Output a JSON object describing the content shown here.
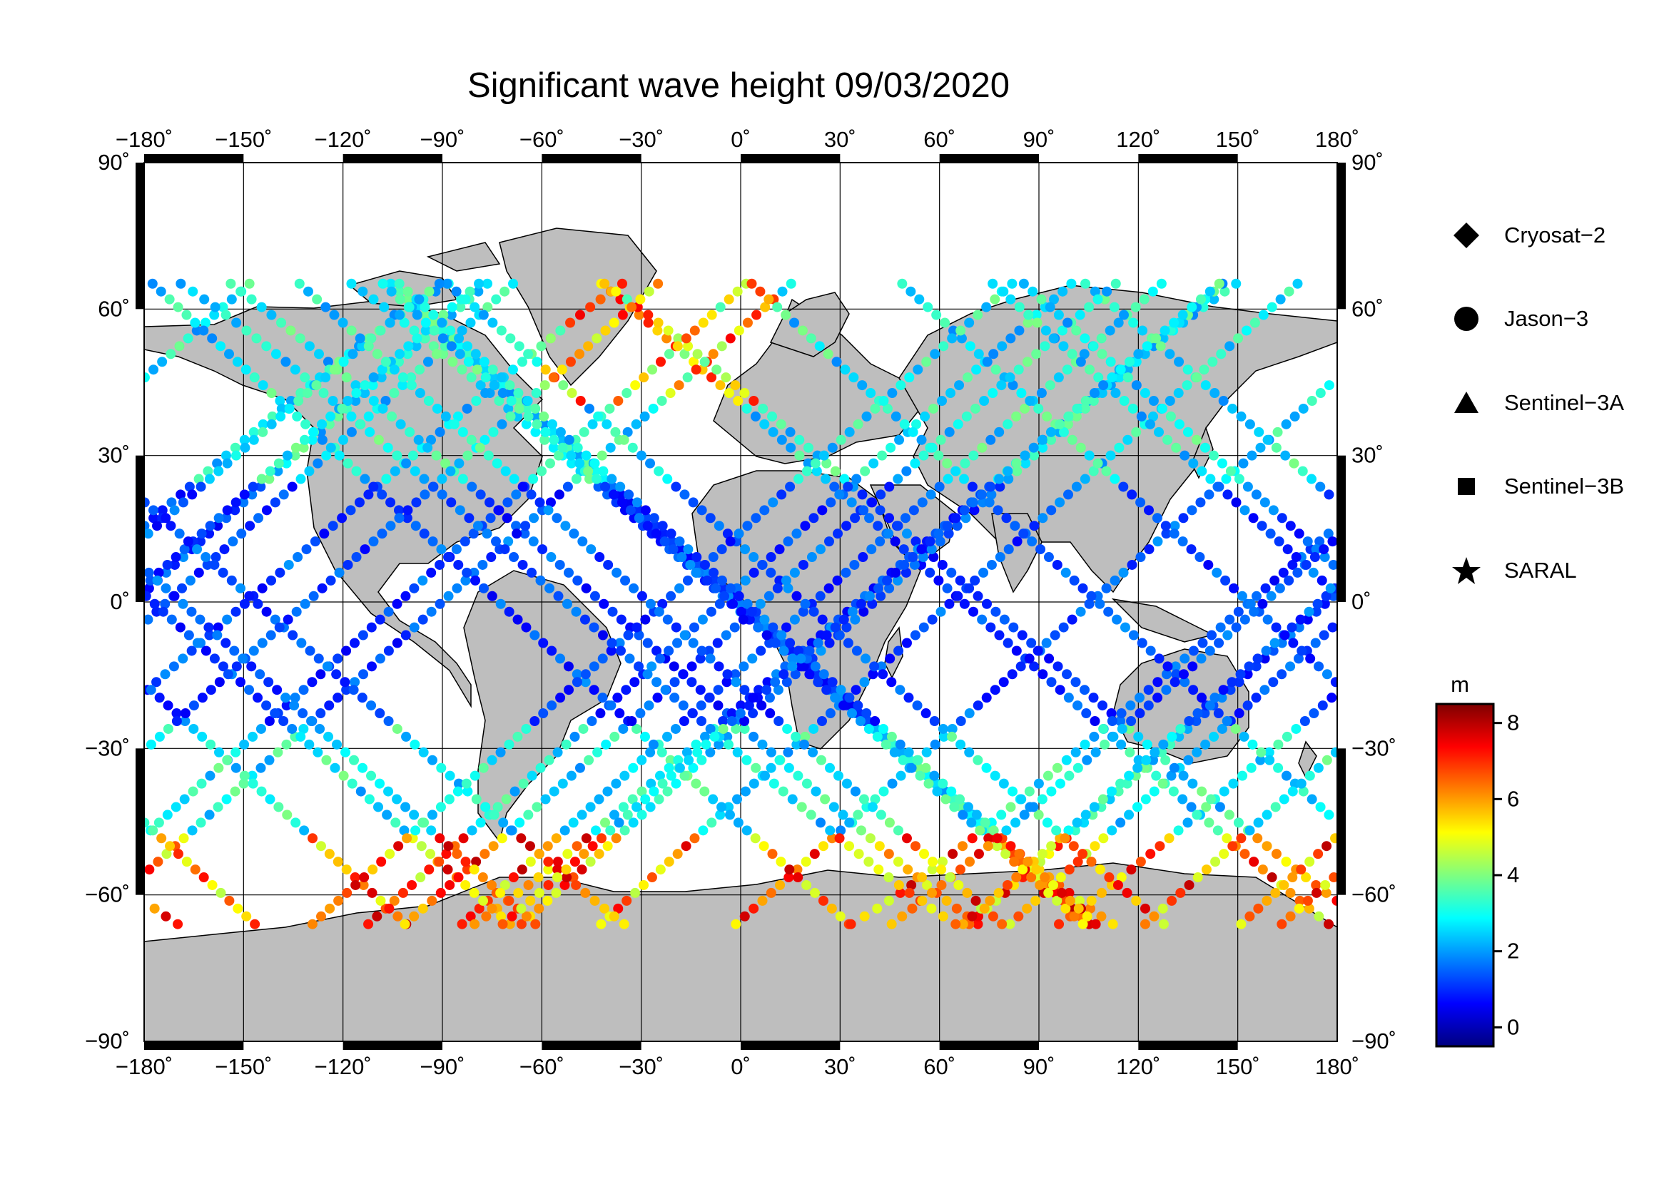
{
  "title": "Significant wave height 09/03/2020",
  "map": {
    "lon_ticks": [
      "−180˚",
      "−150˚",
      "−120˚",
      "−90˚",
      "−60˚",
      "−30˚",
      "0˚",
      "30˚",
      "60˚",
      "90˚",
      "120˚",
      "150˚",
      "180˚"
    ],
    "lat_ticks_left": [
      "90˚",
      "60˚",
      "30˚",
      "0˚",
      "−30˚",
      "−60˚",
      "−90˚"
    ],
    "lat_ticks_right": [
      "90˚",
      "60˚",
      "30˚",
      "0˚",
      "−30˚",
      "−60˚",
      "−90˚"
    ],
    "lon_range": [
      -180,
      180
    ],
    "lat_range": [
      -90,
      90
    ],
    "grid": true,
    "land_color": "#bebebe",
    "ocean_color": "#ffffff"
  },
  "legend": {
    "items": [
      {
        "label": "Cryosat−2",
        "icon": "diamond-icon"
      },
      {
        "label": "Jason−3",
        "icon": "circle-icon"
      },
      {
        "label": "Sentinel−3A",
        "icon": "triangle-icon"
      },
      {
        "label": "Sentinel−3B",
        "icon": "square-icon"
      },
      {
        "label": "SARAL",
        "icon": "star-icon"
      }
    ]
  },
  "colorbar": {
    "unit": "m",
    "ticks": [
      "8",
      "6",
      "4",
      "2",
      "0"
    ],
    "range": [
      -0.5,
      8.5
    ],
    "colors": [
      "#00007f",
      "#0000ff",
      "#007fff",
      "#00ffff",
      "#7fff7f",
      "#ffff00",
      "#ff7f00",
      "#ff0000",
      "#7f0000"
    ]
  }
}
